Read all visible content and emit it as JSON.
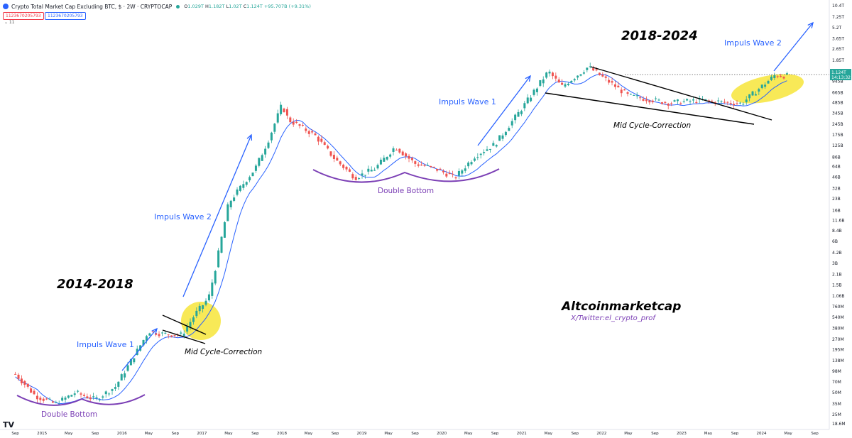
{
  "header": {
    "title": "Crypto Total Market Cap Excluding BTC, $ · 2W · CRYPTOCAP",
    "ohlc": {
      "o_label": "O",
      "o": "1.029T",
      "h_label": "H",
      "h": "1.182T",
      "l_label": "L",
      "l": "1.02T",
      "c_label": "C",
      "c": "1.124T",
      "change": "+95.707B (+9.31%)"
    },
    "box_red": "1123670205793",
    "box_blue": "1123670205793",
    "collapse": "⌄ 11"
  },
  "price_axis": {
    "ticks": [
      "10.4T",
      "7.25T",
      "5.2T",
      "3.65T",
      "2.65T",
      "1.85T",
      "1.3T",
      "945B",
      "665B",
      "485B",
      "345B",
      "245B",
      "175B",
      "125B",
      "86B",
      "64B",
      "46B",
      "32B",
      "23B",
      "16B",
      "11.6B",
      "8.4B",
      "6B",
      "4.2B",
      "3B",
      "2.1B",
      "1.5B",
      "1.06B",
      "760M",
      "540M",
      "380M",
      "270M",
      "195M",
      "138M",
      "98M",
      "70M",
      "50M",
      "35M",
      "25M",
      "18.6M"
    ],
    "last_price": "1.124T",
    "countdown": "14:13:32"
  },
  "time_axis": {
    "labels": [
      "Sep",
      "2015",
      "May",
      "Sep",
      "2016",
      "May",
      "Sep",
      "2017",
      "May",
      "Sep",
      "2018",
      "May",
      "Sep",
      "2019",
      "May",
      "Sep",
      "2020",
      "May",
      "Sep",
      "2021",
      "May",
      "Sep",
      "2022",
      "May",
      "Sep",
      "2023",
      "May",
      "Sep",
      "2024",
      "May",
      "Sep"
    ]
  },
  "annotations": {
    "period_2014": "2014-2018",
    "period_2018": "2018-2024",
    "impuls1_early": "Impuls Wave 1",
    "impuls2_early": "Impuls Wave 2",
    "impuls1_late": "Impuls Wave 1",
    "impuls2_late": "Impuls Wave 2",
    "db_early": "Double Bottom",
    "db_late": "Double Bottom",
    "mcc_early": "Mid Cycle-Correction",
    "mcc_late": "Mid Cycle-Correction",
    "brand": "Altcoinmarketcap",
    "twitter": "X/Twitter:el_crypto_prof"
  },
  "logo": "TV",
  "colors": {
    "up": "#26a69a",
    "down": "#ef5350",
    "ma": "#2962ff",
    "annotation_blue": "#2962ff",
    "purple": "#7b3fb5",
    "highlight": "#f7e53a"
  },
  "chart_data": {
    "type": "candlestick",
    "title": "Crypto Total Market Cap Excluding BTC, $ · 2W · CRYPTOCAP",
    "y_scale": "log",
    "ylim_usd": [
      18600000,
      10400000000000
    ],
    "xlim": [
      "2014-08",
      "2024-10"
    ],
    "series": [
      {
        "name": "price_path_approx",
        "values": [
          [
            "2014-09",
            90000000.0
          ],
          [
            "2014-12",
            45000000.0
          ],
          [
            "2015-03",
            35000000.0
          ],
          [
            "2015-06",
            50000000.0
          ],
          [
            "2015-09",
            40000000.0
          ],
          [
            "2015-12",
            60000000.0
          ],
          [
            "2016-03",
            170000000.0
          ],
          [
            "2016-05",
            350000000.0
          ],
          [
            "2016-07",
            320000000.0
          ],
          [
            "2016-10",
            310000000.0
          ],
          [
            "2016-12",
            600000000.0
          ],
          [
            "2017-02",
            1000000000.0
          ],
          [
            "2017-03",
            2500000000.0
          ],
          [
            "2017-05",
            20000000000.0
          ],
          [
            "2017-07",
            35000000000.0
          ],
          [
            "2017-09",
            60000000000.0
          ],
          [
            "2017-11",
            150000000000.0
          ],
          [
            "2018-01",
            450000000000.0
          ],
          [
            "2018-02",
            280000000000.0
          ],
          [
            "2018-04",
            220000000000.0
          ],
          [
            "2018-06",
            170000000000.0
          ],
          [
            "2018-09",
            80000000000.0
          ],
          [
            "2018-12",
            45000000000.0
          ],
          [
            "2019-03",
            60000000000.0
          ],
          [
            "2019-06",
            120000000000.0
          ],
          [
            "2019-09",
            70000000000.0
          ],
          [
            "2019-12",
            60000000000.0
          ],
          [
            "2020-03",
            45000000000.0
          ],
          [
            "2020-06",
            90000000000.0
          ],
          [
            "2020-09",
            130000000000.0
          ],
          [
            "2021-01",
            400000000000.0
          ],
          [
            "2021-05",
            1300000000000.0
          ],
          [
            "2021-07",
            800000000000.0
          ],
          [
            "2021-11",
            1500000000000.0
          ],
          [
            "2022-05",
            600000000000.0
          ],
          [
            "2022-11",
            480000000000.0
          ],
          [
            "2023-04",
            520000000000.0
          ],
          [
            "2023-10",
            470000000000.0
          ],
          [
            "2024-03",
            1150000000000.0
          ],
          [
            "2024-05",
            1124000000000.0
          ]
        ]
      }
    ]
  }
}
